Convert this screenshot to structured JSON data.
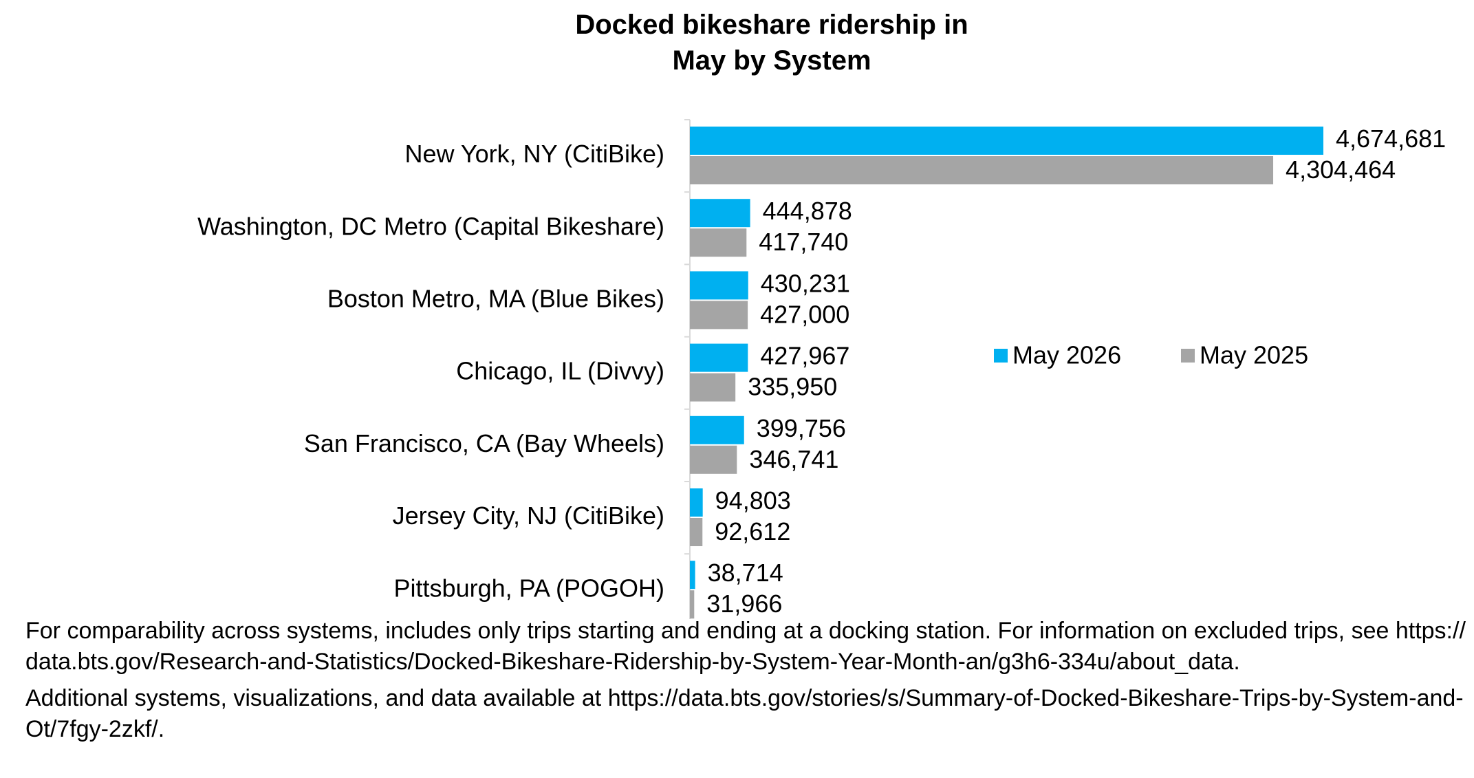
{
  "chart_data": {
    "type": "bar",
    "orientation": "horizontal",
    "title": "Docked bikeshare ridership in May by System",
    "categories": [
      "New York, NY (CitiBike)",
      "Washington, DC Metro (Capital Bikeshare)",
      "Boston Metro, MA (Blue Bikes)",
      "Chicago, IL (Divvy)",
      "San Francisco, CA (Bay Wheels)",
      "Jersey City, NJ (CitiBike)",
      "Pittsburgh, PA (POGOH)"
    ],
    "series": [
      {
        "name": "May 2026",
        "color": "#00b0f0",
        "values": [
          4674681,
          444878,
          430231,
          427967,
          399756,
          94803,
          38714
        ],
        "value_labels": [
          "4,674,681",
          "444,878",
          "430,231",
          "427,967",
          "399,756",
          "94,803",
          "38,714"
        ]
      },
      {
        "name": "May 2025",
        "color": "#a5a5a5",
        "values": [
          4304464,
          417740,
          427000,
          335950,
          346741,
          92612,
          31966
        ],
        "value_labels": [
          "4,304,464",
          "417,740",
          "427,000",
          "335,950",
          "346,741",
          "92,612",
          "31,966"
        ]
      }
    ],
    "legend": "right",
    "notes": [
      "For comparability across systems, includes only trips starting and ending at a docking station. For information on excluded trips, see https://data.bts.gov/Research-and-Statistics/Docked-Bikeshare-Ridership-by-System-Year-Month-an/g3h6-334u/about_data.",
      "Additional systems, visualizations, and data available at https://data.bts.gov/stories/s/Summary-of-Docked-Bikeshare-Trips-by-System-and-Ot/7fgy-2zkf/."
    ]
  }
}
